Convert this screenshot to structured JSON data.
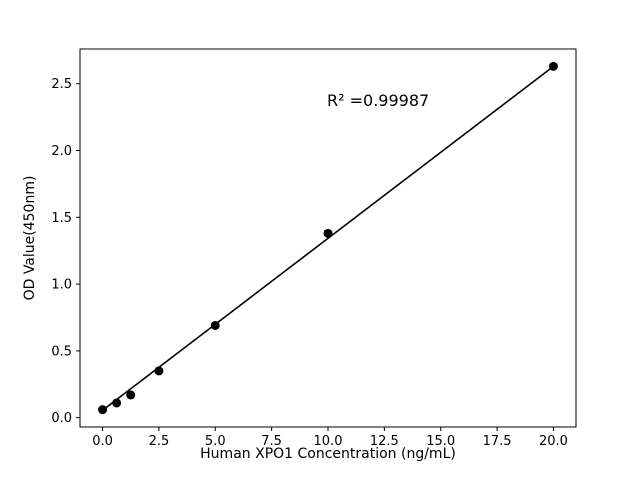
{
  "chart_data": {
    "type": "scatter",
    "title": "",
    "xlabel": "Human XPO1 Concentration (ng/mL)",
    "ylabel": "OD Value(450nm)",
    "annotation": "R² =0.99987",
    "x": [
      0,
      0.625,
      1.25,
      2.5,
      5,
      10,
      20
    ],
    "y": [
      0.06,
      0.11,
      0.17,
      0.35,
      0.69,
      1.38,
      2.63
    ],
    "fit_line": {
      "x": [
        0,
        20
      ],
      "y": [
        0.055,
        2.63
      ]
    },
    "xticks": [
      0.0,
      2.5,
      5.0,
      7.5,
      10.0,
      12.5,
      15.0,
      17.5,
      20.0
    ],
    "yticks": [
      0.0,
      0.5,
      1.0,
      1.5,
      2.0,
      2.5
    ],
    "xlim": [
      -1.0,
      21.0
    ],
    "ylim": [
      -0.07,
      2.76
    ],
    "grid": false,
    "legend": "none",
    "marker_color": "#000000",
    "line_color": "#000000",
    "axis_color": "#000000",
    "background_color": "#ffffff"
  }
}
